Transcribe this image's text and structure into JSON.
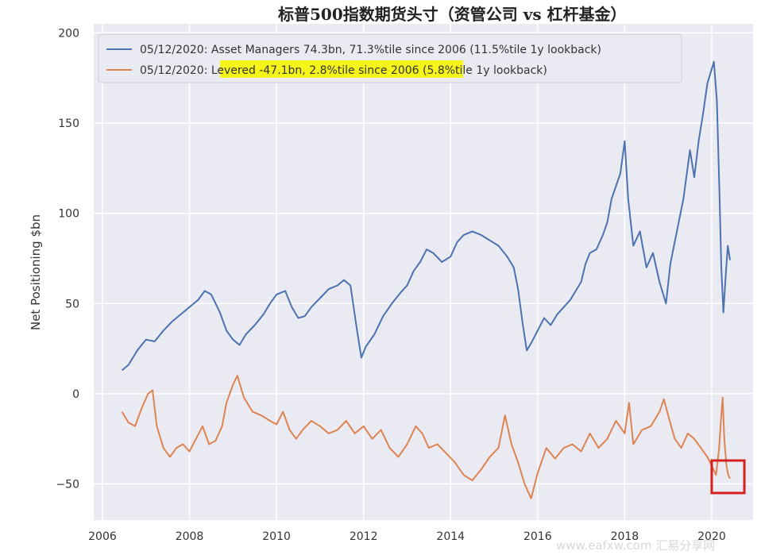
{
  "title": "标普500指数期货头寸（资管公司 vs 杠杆基金）",
  "watermark": "www.eafxw.com 汇易分享网",
  "chart_data": {
    "type": "line",
    "ylabel": "Net Positioning $bn",
    "xlim": [
      2005.8,
      2020.95
    ],
    "ylim": [
      -70,
      205
    ],
    "x_ticks": [
      2006,
      2008,
      2010,
      2012,
      2014,
      2016,
      2018,
      2020
    ],
    "y_ticks": [
      -50,
      0,
      50,
      100,
      150,
      200
    ],
    "grid": true,
    "legend_position": "top-left",
    "highlight_box": {
      "x_range": [
        2020.0,
        2020.75
      ],
      "y_range": [
        -55,
        -37
      ],
      "color": "#d62020"
    },
    "series": [
      {
        "name": "05/12/2020: Asset Managers 74.3bn, 71.3%tile since 2006 (11.5%tile 1y lookback)",
        "color": "#4c72b0",
        "points": [
          [
            2006.45,
            13
          ],
          [
            2006.6,
            16
          ],
          [
            2006.8,
            24
          ],
          [
            2007.0,
            30
          ],
          [
            2007.2,
            29
          ],
          [
            2007.4,
            35
          ],
          [
            2007.6,
            40
          ],
          [
            2007.8,
            44
          ],
          [
            2008.0,
            48
          ],
          [
            2008.2,
            52
          ],
          [
            2008.35,
            57
          ],
          [
            2008.5,
            55
          ],
          [
            2008.7,
            45
          ],
          [
            2008.85,
            35
          ],
          [
            2009.0,
            30
          ],
          [
            2009.15,
            27
          ],
          [
            2009.3,
            33
          ],
          [
            2009.5,
            38
          ],
          [
            2009.7,
            44
          ],
          [
            2009.85,
            50
          ],
          [
            2010.0,
            55
          ],
          [
            2010.2,
            57
          ],
          [
            2010.35,
            48
          ],
          [
            2010.5,
            42
          ],
          [
            2010.65,
            43
          ],
          [
            2010.8,
            48
          ],
          [
            2011.0,
            53
          ],
          [
            2011.2,
            58
          ],
          [
            2011.4,
            60
          ],
          [
            2011.55,
            63
          ],
          [
            2011.7,
            60
          ],
          [
            2011.85,
            35
          ],
          [
            2011.95,
            20
          ],
          [
            2012.05,
            26
          ],
          [
            2012.25,
            33
          ],
          [
            2012.45,
            43
          ],
          [
            2012.65,
            50
          ],
          [
            2012.85,
            56
          ],
          [
            2013.0,
            60
          ],
          [
            2013.15,
            68
          ],
          [
            2013.3,
            73
          ],
          [
            2013.45,
            80
          ],
          [
            2013.6,
            78
          ],
          [
            2013.8,
            73
          ],
          [
            2014.0,
            76
          ],
          [
            2014.15,
            84
          ],
          [
            2014.3,
            88
          ],
          [
            2014.5,
            90
          ],
          [
            2014.7,
            88
          ],
          [
            2014.9,
            85
          ],
          [
            2015.1,
            82
          ],
          [
            2015.3,
            76
          ],
          [
            2015.45,
            70
          ],
          [
            2015.55,
            58
          ],
          [
            2015.65,
            40
          ],
          [
            2015.75,
            24
          ],
          [
            2015.85,
            28
          ],
          [
            2016.0,
            35
          ],
          [
            2016.15,
            42
          ],
          [
            2016.3,
            38
          ],
          [
            2016.45,
            44
          ],
          [
            2016.6,
            48
          ],
          [
            2016.75,
            52
          ],
          [
            2016.9,
            58
          ],
          [
            2017.0,
            62
          ],
          [
            2017.1,
            72
          ],
          [
            2017.2,
            78
          ],
          [
            2017.35,
            80
          ],
          [
            2017.5,
            88
          ],
          [
            2017.6,
            95
          ],
          [
            2017.7,
            108
          ],
          [
            2017.8,
            115
          ],
          [
            2017.9,
            122
          ],
          [
            2018.0,
            140
          ],
          [
            2018.08,
            108
          ],
          [
            2018.2,
            82
          ],
          [
            2018.35,
            90
          ],
          [
            2018.5,
            70
          ],
          [
            2018.65,
            78
          ],
          [
            2018.8,
            62
          ],
          [
            2018.95,
            50
          ],
          [
            2019.05,
            72
          ],
          [
            2019.2,
            90
          ],
          [
            2019.35,
            108
          ],
          [
            2019.5,
            135
          ],
          [
            2019.6,
            120
          ],
          [
            2019.7,
            140
          ],
          [
            2019.8,
            155
          ],
          [
            2019.9,
            172
          ],
          [
            2020.0,
            180
          ],
          [
            2020.05,
            184
          ],
          [
            2020.12,
            162
          ],
          [
            2020.18,
            110
          ],
          [
            2020.22,
            70
          ],
          [
            2020.27,
            45
          ],
          [
            2020.32,
            65
          ],
          [
            2020.37,
            82
          ],
          [
            2020.42,
            74
          ]
        ]
      },
      {
        "name": "05/12/2020: Levered -47.1bn, 2.8%tile since 2006 (5.8%tile 1y lookback)",
        "color": "#dd8452",
        "points": [
          [
            2006.45,
            -10
          ],
          [
            2006.6,
            -16
          ],
          [
            2006.75,
            -18
          ],
          [
            2006.9,
            -8
          ],
          [
            2007.05,
            0
          ],
          [
            2007.15,
            2
          ],
          [
            2007.25,
            -18
          ],
          [
            2007.4,
            -30
          ],
          [
            2007.55,
            -35
          ],
          [
            2007.7,
            -30
          ],
          [
            2007.85,
            -28
          ],
          [
            2008.0,
            -32
          ],
          [
            2008.15,
            -25
          ],
          [
            2008.3,
            -18
          ],
          [
            2008.45,
            -28
          ],
          [
            2008.6,
            -26
          ],
          [
            2008.75,
            -18
          ],
          [
            2008.85,
            -5
          ],
          [
            2009.0,
            5
          ],
          [
            2009.1,
            10
          ],
          [
            2009.25,
            -2
          ],
          [
            2009.45,
            -10
          ],
          [
            2009.65,
            -12
          ],
          [
            2009.85,
            -15
          ],
          [
            2010.0,
            -17
          ],
          [
            2010.15,
            -10
          ],
          [
            2010.3,
            -20
          ],
          [
            2010.45,
            -25
          ],
          [
            2010.6,
            -20
          ],
          [
            2010.8,
            -15
          ],
          [
            2011.0,
            -18
          ],
          [
            2011.2,
            -22
          ],
          [
            2011.4,
            -20
          ],
          [
            2011.6,
            -15
          ],
          [
            2011.8,
            -22
          ],
          [
            2012.0,
            -18
          ],
          [
            2012.2,
            -25
          ],
          [
            2012.4,
            -20
          ],
          [
            2012.6,
            -30
          ],
          [
            2012.8,
            -35
          ],
          [
            2013.0,
            -28
          ],
          [
            2013.2,
            -18
          ],
          [
            2013.35,
            -22
          ],
          [
            2013.5,
            -30
          ],
          [
            2013.7,
            -28
          ],
          [
            2013.9,
            -33
          ],
          [
            2014.1,
            -38
          ],
          [
            2014.3,
            -45
          ],
          [
            2014.5,
            -48
          ],
          [
            2014.7,
            -42
          ],
          [
            2014.9,
            -35
          ],
          [
            2015.1,
            -30
          ],
          [
            2015.25,
            -12
          ],
          [
            2015.4,
            -28
          ],
          [
            2015.55,
            -38
          ],
          [
            2015.7,
            -50
          ],
          [
            2015.85,
            -58
          ],
          [
            2016.0,
            -44
          ],
          [
            2016.2,
            -30
          ],
          [
            2016.4,
            -36
          ],
          [
            2016.6,
            -30
          ],
          [
            2016.8,
            -28
          ],
          [
            2017.0,
            -32
          ],
          [
            2017.2,
            -22
          ],
          [
            2017.4,
            -30
          ],
          [
            2017.6,
            -25
          ],
          [
            2017.8,
            -15
          ],
          [
            2018.0,
            -22
          ],
          [
            2018.1,
            -5
          ],
          [
            2018.2,
            -28
          ],
          [
            2018.4,
            -20
          ],
          [
            2018.6,
            -18
          ],
          [
            2018.8,
            -10
          ],
          [
            2018.9,
            -3
          ],
          [
            2019.0,
            -12
          ],
          [
            2019.15,
            -25
          ],
          [
            2019.3,
            -30
          ],
          [
            2019.45,
            -22
          ],
          [
            2019.6,
            -25
          ],
          [
            2019.75,
            -30
          ],
          [
            2019.9,
            -35
          ],
          [
            2020.0,
            -40
          ],
          [
            2020.1,
            -45
          ],
          [
            2020.17,
            -30
          ],
          [
            2020.22,
            -12
          ],
          [
            2020.25,
            -2
          ],
          [
            2020.29,
            -25
          ],
          [
            2020.34,
            -40
          ],
          [
            2020.38,
            -45
          ],
          [
            2020.42,
            -47
          ]
        ]
      }
    ]
  }
}
